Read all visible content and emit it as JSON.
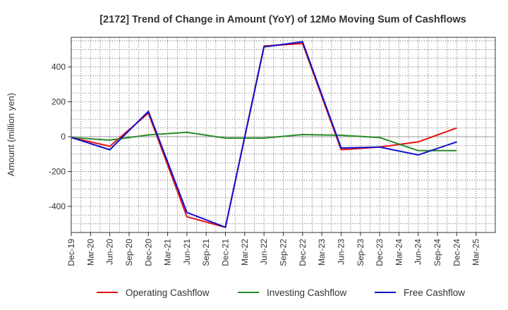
{
  "chart_data": {
    "type": "line",
    "title": "[2172]  Trend of Change in Amount (YoY) of 12Mo Moving Sum of Cashflows",
    "xlabel": "",
    "ylabel": "Amount (million yen)",
    "ylim": [
      -550,
      570
    ],
    "yticks": [
      400,
      200,
      0,
      -200,
      -400
    ],
    "categories": [
      "Dec-19",
      "Mar-20",
      "Jun-20",
      "Sep-20",
      "Dec-20",
      "Mar-21",
      "Jun-21",
      "Sep-21",
      "Dec-21",
      "Mar-22",
      "Jun-22",
      "Sep-22",
      "Dec-22",
      "Mar-23",
      "Jun-23",
      "Sep-23",
      "Dec-23",
      "Mar-24",
      "Jun-24",
      "Sep-24",
      "Dec-24",
      "Mar-25"
    ],
    "grid": true,
    "legend_position": "bottom",
    "series": [
      {
        "name": "Operating Cashflow",
        "color": "#e8100f",
        "values": [
          -5,
          null,
          -55,
          null,
          135,
          null,
          -460,
          null,
          -520,
          null,
          520,
          null,
          535,
          null,
          -75,
          null,
          -60,
          null,
          -30,
          null,
          50,
          null
        ]
      },
      {
        "name": "Investing Cashflow",
        "color": "#2a8a2a",
        "values": [
          -5,
          null,
          -20,
          null,
          10,
          null,
          25,
          null,
          -8,
          null,
          -8,
          null,
          12,
          null,
          8,
          null,
          -5,
          null,
          -80,
          null,
          -80,
          null
        ]
      },
      {
        "name": "Free Cashflow",
        "color": "#1010cc",
        "values": [
          -5,
          null,
          -75,
          null,
          145,
          null,
          -435,
          null,
          -520,
          null,
          515,
          null,
          545,
          null,
          -65,
          null,
          -60,
          null,
          -105,
          null,
          -30,
          null
        ]
      }
    ]
  }
}
